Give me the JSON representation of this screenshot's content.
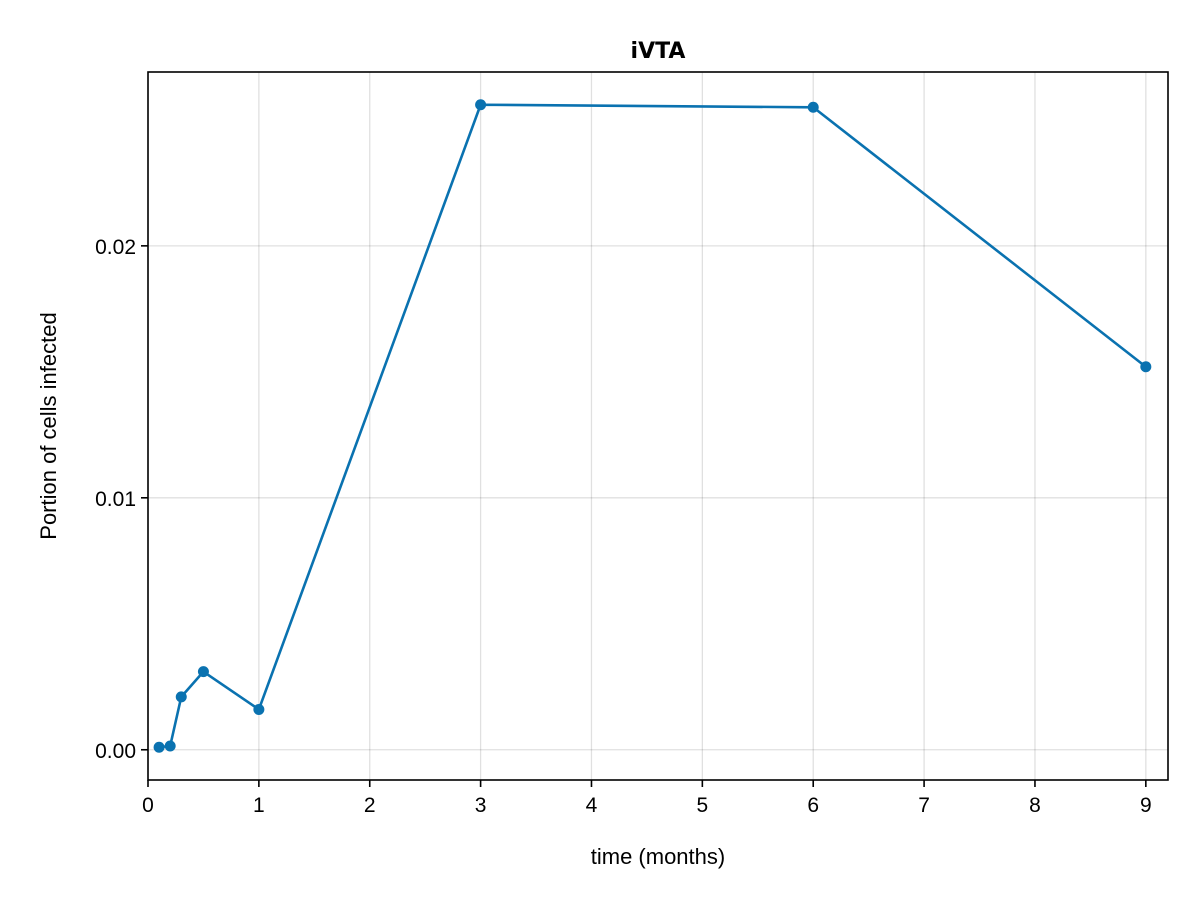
{
  "chart_data": {
    "type": "line",
    "title": "iVTA",
    "xlabel": "time (months)",
    "ylabel": "Portion of cells infected",
    "xlim": [
      0,
      9.2
    ],
    "ylim": [
      -0.0012,
      0.0269
    ],
    "xticks": [
      0,
      1,
      2,
      3,
      4,
      5,
      6,
      7,
      8,
      9
    ],
    "xtick_labels": [
      "0",
      "1",
      "2",
      "3",
      "4",
      "5",
      "6",
      "7",
      "8",
      "9"
    ],
    "yticks": [
      0.0,
      0.01,
      0.02
    ],
    "ytick_labels": [
      "0.00",
      "0.01",
      "0.02"
    ],
    "grid": true,
    "colors": {
      "series": "#0a72b0"
    },
    "series": [
      {
        "x": [
          0.1,
          0.2,
          0.3,
          0.5,
          1,
          3,
          6,
          9
        ],
        "y": [
          0.0001,
          0.00015,
          0.0021,
          0.0031,
          0.0016,
          0.0256,
          0.0255,
          0.0152
        ]
      }
    ]
  }
}
